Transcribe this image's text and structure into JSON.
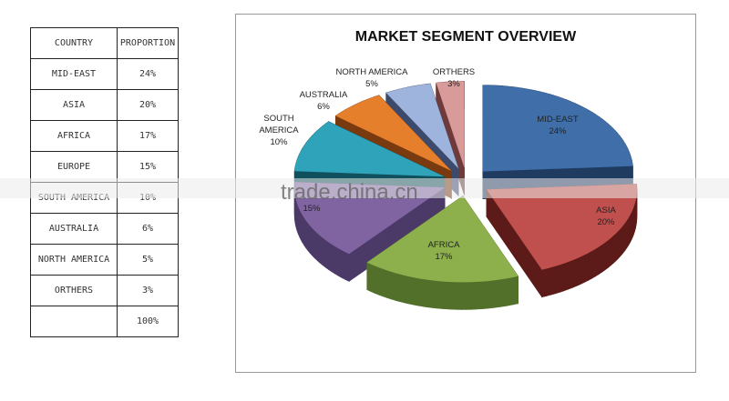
{
  "table": {
    "headers": [
      "COUNTRY",
      "PROPORTION"
    ],
    "rows": [
      [
        "MID-EAST",
        "24%"
      ],
      [
        "ASIA",
        "20%"
      ],
      [
        "AFRICA",
        "17%"
      ],
      [
        "EUROPE",
        "15%"
      ],
      [
        "SOUTH AMERICA",
        "10%"
      ],
      [
        "AUSTRALIA",
        "6%"
      ],
      [
        "NORTH AMERICA",
        "5%"
      ],
      [
        "ORTHERS",
        "3%"
      ],
      [
        "",
        "100%"
      ]
    ]
  },
  "watermark": "trade.china.cn",
  "chart_data": {
    "type": "pie",
    "style": "3d-exploded",
    "title": "MARKET SEGMENT OVERVIEW",
    "categories": [
      "MID-EAST",
      "ASIA",
      "AFRICA",
      "EUROPE",
      "SOUTH AMERICA",
      "AUSTRALIA",
      "NORTH AMERICA",
      "ORTHERS"
    ],
    "values": [
      24,
      20,
      17,
      15,
      10,
      6,
      5,
      3
    ],
    "data_labels": [
      "MID-EAST 24%",
      "ASIA 20%",
      "AFRICA 17%",
      "15%",
      "SOUTH AMERICA 10%",
      "AUSTRALIA 6%",
      "NORTH AMERICA 5%",
      "ORTHERS 3%"
    ],
    "colors": [
      "#3f6ea8",
      "#c0504d",
      "#8db04c",
      "#8064a2",
      "#2fa3ba",
      "#e57f2c",
      "#9fb4dc",
      "#d99a9a"
    ],
    "side_colors": [
      "#1f3b60",
      "#5c1a18",
      "#52702a",
      "#4b3a68",
      "#10505c",
      "#7a3a10",
      "#3c4a6c",
      "#6e3a3a"
    ],
    "legend": "none"
  }
}
